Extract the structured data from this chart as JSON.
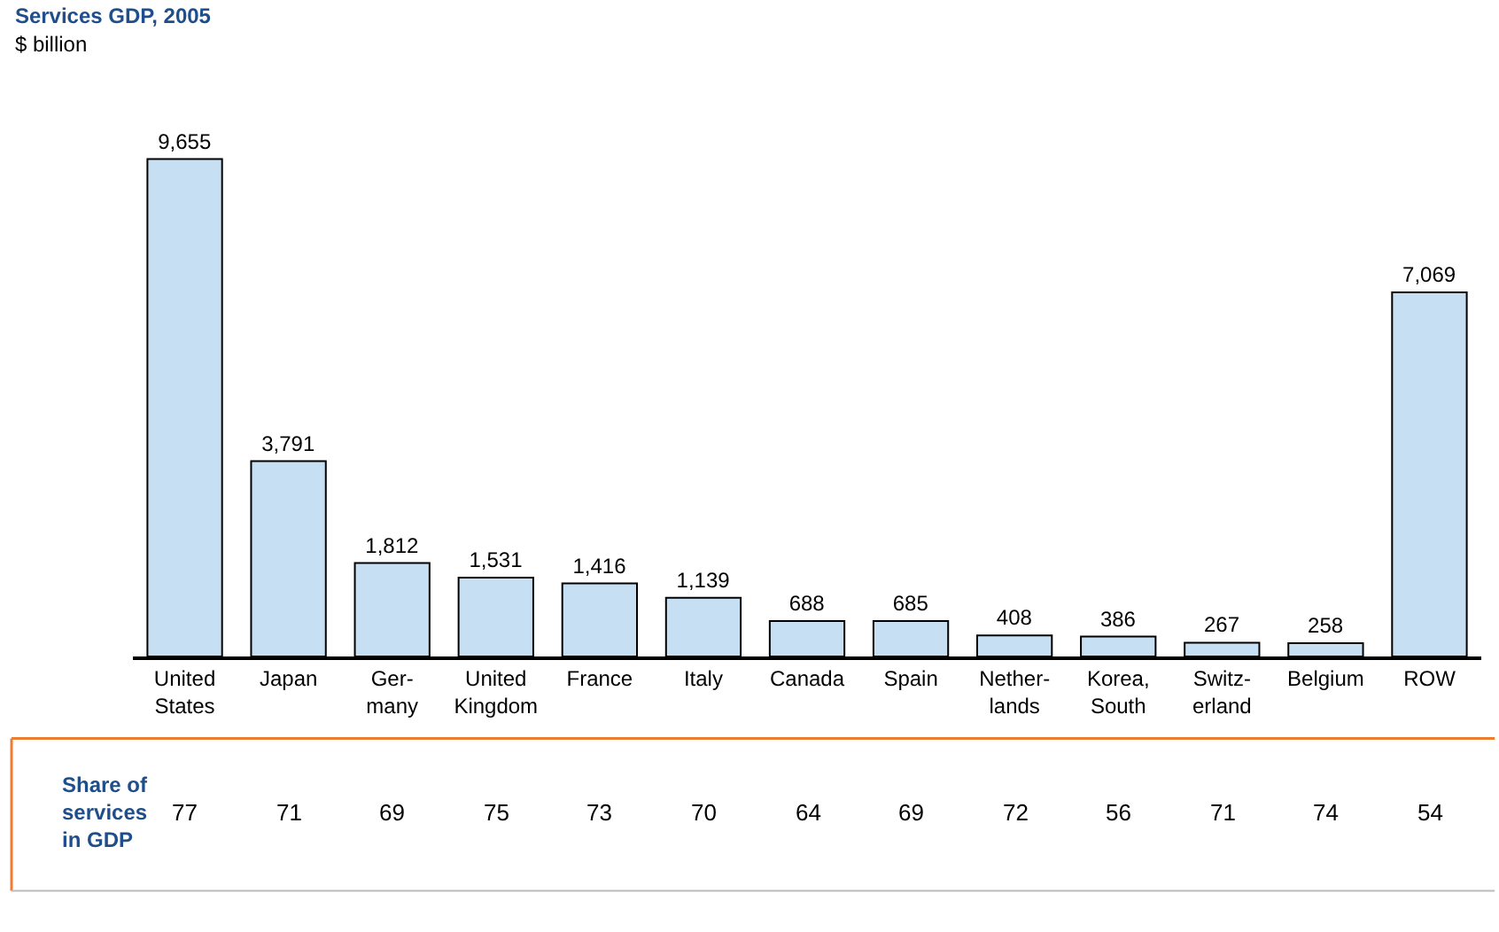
{
  "chart_data": {
    "type": "bar",
    "title": "Services GDP, 2005",
    "subtitle": "$ billion",
    "categories": [
      "United\nStates",
      "Japan",
      "Ger-\nmany",
      "United\nKingdom",
      "France",
      "Italy",
      "Canada",
      "Spain",
      "Nether-\nlands",
      "Korea,\nSouth",
      "Switz-\nerland",
      "Belgium",
      "ROW"
    ],
    "values": [
      9655,
      3791,
      1812,
      1531,
      1416,
      1139,
      688,
      685,
      408,
      386,
      267,
      258,
      7069
    ],
    "value_labels": [
      "9,655",
      "3,791",
      "1,812",
      "1,531",
      "1,416",
      "1,139",
      "688",
      "685",
      "408",
      "386",
      "267",
      "258",
      "7,069"
    ],
    "color": "#c6dff3",
    "legend": false,
    "annotations": [
      "Share of\nservices\nin GDP",
      "77",
      "71",
      "69",
      "75",
      "73",
      "70",
      "64",
      "69",
      "72",
      "56",
      "71",
      "74",
      "54"
    ]
  }
}
